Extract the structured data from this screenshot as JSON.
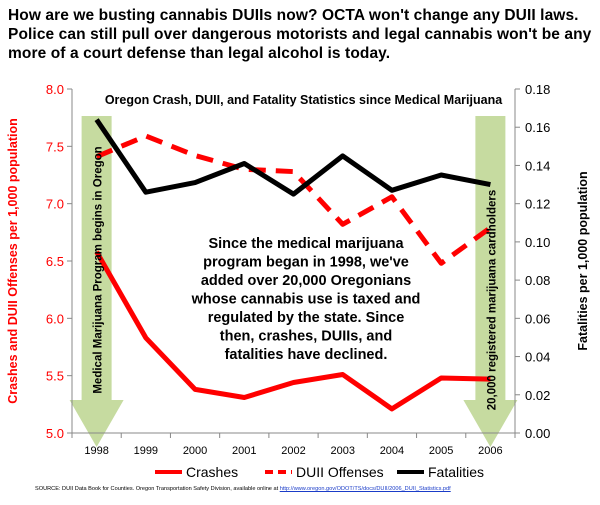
{
  "headline": "How are we busting cannabis DUIIs now?  OCTA won't change any DUII laws.  Police can still pull over dangerous motorists and legal cannabis won't be any more of a court defense than legal alcohol is today.",
  "source": {
    "text": "SOURCE: DUII Data Book for Counties. Oregon Transportation Safety Division, available online at ",
    "link": "http://www.oregon.gov/ODOT/TS/docs/DUII/2006_DUII_Statistics.pdf"
  },
  "chart_data": {
    "type": "line",
    "title": "Oregon Crash, DUII, and Fatality Statistics since Medical Marijuana",
    "x": [
      "1998",
      "1999",
      "2000",
      "2001",
      "2002",
      "2003",
      "2004",
      "2005",
      "2006"
    ],
    "y_left": {
      "label": "Crashes and DUII Offenses per 1,000 population",
      "range": [
        5.0,
        8.0
      ],
      "ticks": [
        "5.0",
        "5.5",
        "6.0",
        "6.5",
        "7.0",
        "7.5",
        "8.0"
      ],
      "color": "#ff0000"
    },
    "y_right": {
      "label": "Fatalities per 1,000 population",
      "range": [
        0.0,
        0.18
      ],
      "ticks": [
        "0.00",
        "0.02",
        "0.04",
        "0.06",
        "0.08",
        "0.10",
        "0.12",
        "0.14",
        "0.16",
        "0.18"
      ],
      "color": "#000000"
    },
    "series": [
      {
        "name": "Crashes",
        "axis": "left",
        "style": "solid",
        "color": "#ff0000",
        "values": [
          6.58,
          5.83,
          5.38,
          5.31,
          5.44,
          5.51,
          5.21,
          5.48,
          5.47
        ]
      },
      {
        "name": "DUII Offenses",
        "axis": "left",
        "style": "dashed",
        "color": "#ff0000",
        "values": [
          7.41,
          7.59,
          7.42,
          7.3,
          7.28,
          6.82,
          7.06,
          6.48,
          6.79
        ]
      },
      {
        "name": "Fatalities",
        "axis": "right",
        "style": "solid",
        "color": "#000000",
        "values": [
          0.164,
          0.126,
          0.131,
          0.141,
          0.125,
          0.145,
          0.127,
          0.135,
          0.13
        ]
      }
    ],
    "annotations": {
      "left_arrow": "Medical Marijuana Program begins in Oregon",
      "right_arrow": "20,000 registered marijuana cardholders",
      "center_text": [
        "Since the medical marijuana",
        "program began in 1998, we've",
        "added over 20,000 Oregonians",
        "whose cannabis use is taxed and",
        "regulated by the state.  Since",
        "then, crashes, DUIIs, and",
        "fatalities have declined."
      ],
      "arrow_color": "#c6dba0"
    },
    "legend": {
      "placement": "bottom"
    },
    "grid": false
  }
}
